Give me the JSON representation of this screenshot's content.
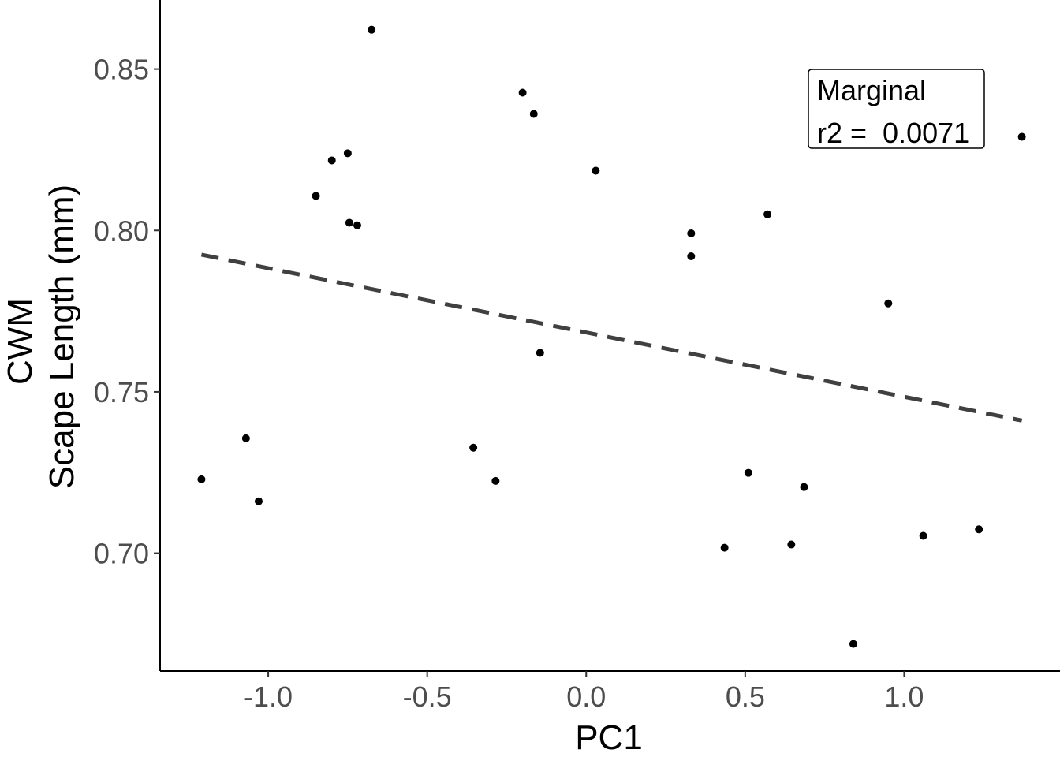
{
  "chart_data": {
    "type": "scatter",
    "xlabel": "PC1",
    "ylabel_lines": [
      "CWM",
      "Scape Length (mm)"
    ],
    "xlim": [
      -1.34,
      1.49
    ],
    "ylim": [
      0.6635,
      0.8714
    ],
    "x_ticks": [
      -1.0,
      -0.5,
      0.0,
      0.5,
      1.0
    ],
    "x_tick_labels": [
      "-1.0",
      "-0.5",
      "0.0",
      "0.5",
      "1.0"
    ],
    "y_ticks": [
      0.7,
      0.75,
      0.8,
      0.85
    ],
    "y_tick_labels": [
      "0.70",
      "0.75",
      "0.80",
      "0.85"
    ],
    "grid": false,
    "points": [
      {
        "x": -1.21,
        "y": 0.7229
      },
      {
        "x": -1.07,
        "y": 0.7356
      },
      {
        "x": -1.03,
        "y": 0.7161
      },
      {
        "x": -0.85,
        "y": 0.8107
      },
      {
        "x": -0.8,
        "y": 0.8217
      },
      {
        "x": -0.75,
        "y": 0.8239
      },
      {
        "x": -0.745,
        "y": 0.8024
      },
      {
        "x": -0.72,
        "y": 0.8016
      },
      {
        "x": -0.675,
        "y": 0.8622
      },
      {
        "x": -0.355,
        "y": 0.7327
      },
      {
        "x": -0.285,
        "y": 0.7224
      },
      {
        "x": -0.2,
        "y": 0.8427
      },
      {
        "x": -0.165,
        "y": 0.8361
      },
      {
        "x": -0.145,
        "y": 0.7621
      },
      {
        "x": 0.03,
        "y": 0.8185
      },
      {
        "x": 0.33,
        "y": 0.7991
      },
      {
        "x": 0.33,
        "y": 0.792
      },
      {
        "x": 0.435,
        "y": 0.7017
      },
      {
        "x": 0.51,
        "y": 0.7249
      },
      {
        "x": 0.57,
        "y": 0.805
      },
      {
        "x": 0.645,
        "y": 0.7027
      },
      {
        "x": 0.685,
        "y": 0.7205
      },
      {
        "x": 0.84,
        "y": 0.6719
      },
      {
        "x": 0.95,
        "y": 0.7774
      },
      {
        "x": 1.06,
        "y": 0.7054
      },
      {
        "x": 1.235,
        "y": 0.7074
      },
      {
        "x": 1.37,
        "y": 0.829
      }
    ],
    "trend_line": {
      "x": [
        -1.21,
        1.37
      ],
      "y": [
        0.7925,
        0.7411
      ],
      "style": "dashed",
      "color": "#404040"
    },
    "annotation": {
      "lines": [
        "Marginal",
        "r2 =  0.0071"
      ],
      "placement": "top-right"
    },
    "point_color": "#000000"
  }
}
